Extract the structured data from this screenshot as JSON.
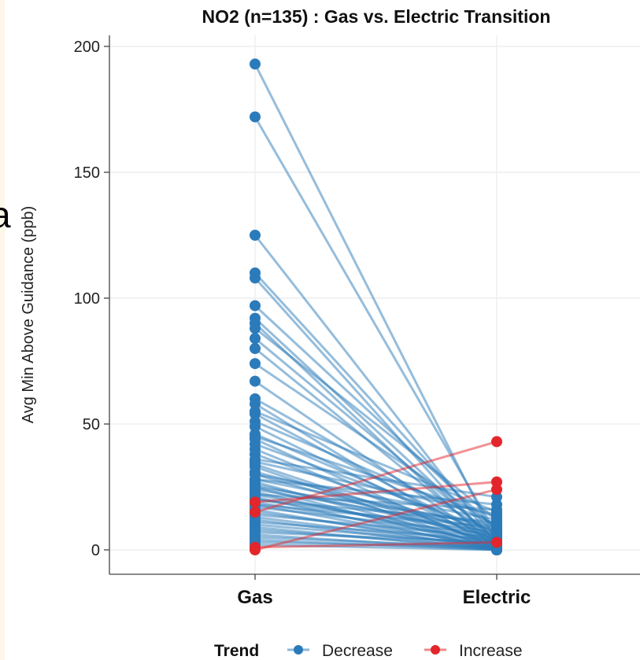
{
  "chart_data": {
    "type": "line",
    "title": "NO2 (n=135) : Gas vs. Electric Transition",
    "xlabel": "",
    "ylabel": "Avg Min Above Guidance (ppb)",
    "categories": [
      "Gas",
      "Electric"
    ],
    "ylim": [
      0,
      200
    ],
    "yticks": [
      0,
      50,
      100,
      150,
      200
    ],
    "grid": true,
    "legend": {
      "title": "Trend",
      "position": "bottom",
      "entries": [
        {
          "name": "Decrease",
          "color": "#2b7bba"
        },
        {
          "name": "Increase",
          "color": "#e3262b"
        }
      ]
    },
    "series": [
      {
        "name": "Decrease",
        "color": "#2b7bba",
        "pairs": [
          [
            193,
            3
          ],
          [
            172,
            6
          ],
          [
            125,
            2
          ],
          [
            110,
            5
          ],
          [
            108,
            1
          ],
          [
            97,
            8
          ],
          [
            92,
            3
          ],
          [
            90,
            0
          ],
          [
            88,
            12
          ],
          [
            84,
            4
          ],
          [
            80,
            2
          ],
          [
            74,
            9
          ],
          [
            67,
            1
          ],
          [
            60,
            6
          ],
          [
            58,
            0
          ],
          [
            54,
            3
          ],
          [
            51,
            10
          ],
          [
            49,
            2
          ],
          [
            46,
            5
          ],
          [
            44,
            0
          ],
          [
            42,
            7
          ],
          [
            40,
            1
          ],
          [
            38,
            4
          ],
          [
            35,
            14
          ],
          [
            34,
            2
          ],
          [
            33,
            0
          ],
          [
            31,
            6
          ],
          [
            30,
            3
          ],
          [
            28,
            9
          ],
          [
            27,
            1
          ],
          [
            26,
            5
          ],
          [
            25,
            0
          ],
          [
            24,
            8
          ],
          [
            23,
            2
          ],
          [
            22,
            4
          ],
          [
            21,
            0
          ],
          [
            20,
            11
          ],
          [
            19,
            3
          ],
          [
            18,
            1
          ],
          [
            17,
            6
          ],
          [
            16,
            0
          ],
          [
            15,
            2
          ],
          [
            14,
            5
          ],
          [
            13,
            1
          ],
          [
            12,
            0
          ],
          [
            11,
            4
          ],
          [
            10,
            2
          ],
          [
            9,
            0
          ],
          [
            8,
            1
          ],
          [
            7,
            3
          ],
          [
            6,
            0
          ],
          [
            5,
            1
          ],
          [
            4,
            0
          ],
          [
            3,
            1
          ],
          [
            2,
            0
          ],
          [
            22,
            16
          ],
          [
            28,
            18
          ],
          [
            36,
            21
          ],
          [
            45,
            13
          ],
          [
            55,
            15
          ],
          [
            30,
            12
          ],
          [
            25,
            10
          ],
          [
            20,
            7
          ],
          [
            18,
            9
          ]
        ]
      },
      {
        "name": "Increase",
        "color": "#e3262b",
        "pairs": [
          [
            15,
            43
          ],
          [
            19,
            27
          ],
          [
            0,
            24
          ],
          [
            1,
            3
          ]
        ]
      }
    ]
  }
}
